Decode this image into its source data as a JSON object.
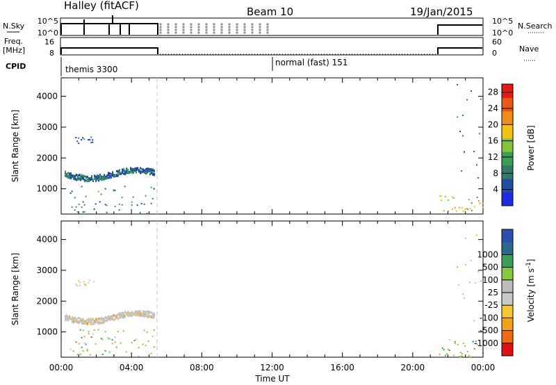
{
  "header": {
    "station": "Halley (fitACF)",
    "beam": "Beam 10",
    "date": "19/Jan/2015"
  },
  "status_panels": {
    "nsky_label": "N.Sky",
    "nsky_ticks": [
      "10^5",
      "10^0"
    ],
    "nsearch_label": "N.Search",
    "nsearch_ticks": [
      "10^5",
      "10^0"
    ],
    "freq_label_1": "Freq.",
    "freq_label_2": "[MHz]",
    "freq_ticks": [
      "16",
      "8"
    ],
    "nave_label": "Nave",
    "nave_ticks": [
      "60",
      "0"
    ],
    "cpid_label": "CPID",
    "cpid_modes": [
      "themis 3300",
      "normal (fast) 151"
    ]
  },
  "colors": {
    "power_scale": [
      "#1e2be6",
      "#214f9e",
      "#2f7a6a",
      "#3b9e54",
      "#84c43a",
      "#f2c210",
      "#f08c1a",
      "#e85a14",
      "#e01c14"
    ],
    "velocity_scale": [
      "#e01010",
      "#f06a14",
      "#f2a21a",
      "#f5c830",
      "#c8c8c8",
      "#bcbcbc",
      "#86c93a",
      "#3f9e55",
      "#2a6a8a",
      "#2a4fae"
    ]
  },
  "chart_data": [
    {
      "type": "heatmap",
      "title": "Power",
      "xlabel": "",
      "ylabel": "Slant Range [km]",
      "xlim_hours_ut": [
        0,
        24
      ],
      "ylim_km": [
        180,
        4600
      ],
      "x_ticks": [
        "00:00",
        "04:00",
        "08:00",
        "12:00",
        "16:00",
        "20:00",
        "00:00"
      ],
      "y_ticks": [
        1000,
        2000,
        3000,
        4000
      ],
      "colorbar": {
        "label": "Power [dB]",
        "ticks": [
          4,
          8,
          12,
          16,
          20,
          24,
          28
        ],
        "range": [
          0,
          30
        ]
      },
      "data_gap_hours_ut": [
        5.35,
        21.4
      ],
      "echo_regions": [
        {
          "name": "band 1300-1700 km",
          "t0": 0.2,
          "t1": 5.3,
          "range_km": [
            1300,
            1700
          ],
          "level_db": 6
        },
        {
          "name": "band 2500-2700 km",
          "t0": 0.8,
          "t1": 2.0,
          "range_km": [
            2500,
            2700
          ],
          "level_db": 4
        },
        {
          "name": "near range",
          "t0": 0.5,
          "t1": 5.3,
          "range_km": [
            200,
            1100
          ],
          "level_db": 8
        },
        {
          "name": "evening near range",
          "t0": 21.5,
          "t1": 24.0,
          "range_km": [
            200,
            800
          ],
          "level_db": 16
        },
        {
          "name": "evening far range",
          "t0": 22.5,
          "t1": 24.0,
          "range_km": [
            1300,
            4400
          ],
          "level_db": 5
        }
      ]
    },
    {
      "type": "heatmap",
      "title": "Velocity",
      "xlabel": "Time UT",
      "ylabel": "Slant Range [km]",
      "xlim_hours_ut": [
        0,
        24
      ],
      "ylim_km": [
        180,
        4600
      ],
      "x_ticks": [
        "00:00",
        "04:00",
        "08:00",
        "12:00",
        "16:00",
        "20:00",
        "00:00"
      ],
      "y_ticks": [
        1000,
        2000,
        3000,
        4000
      ],
      "colorbar": {
        "label": "Velocity [m s^-1]",
        "ticks": [
          -1000,
          -500,
          -100,
          -25,
          25,
          100,
          500,
          1000
        ]
      },
      "data_gap_hours_ut": [
        5.35,
        21.4
      ],
      "echo_regions": [
        {
          "name": "band 1300-1700 km",
          "t0": 0.2,
          "t1": 5.3,
          "range_km": [
            1300,
            1700
          ],
          "velocity": 0
        },
        {
          "name": "band 2500-2700 km",
          "t0": 0.8,
          "t1": 2.0,
          "range_km": [
            2500,
            2700
          ],
          "velocity": 0
        },
        {
          "name": "near range",
          "t0": 0.5,
          "t1": 5.3,
          "range_km": [
            200,
            1100
          ],
          "velocity": 150
        },
        {
          "name": "evening near range",
          "t0": 21.5,
          "t1": 24.0,
          "range_km": [
            200,
            800
          ],
          "velocity": 200
        },
        {
          "name": "evening far range",
          "t0": 22.5,
          "t1": 24.0,
          "range_km": [
            1300,
            4400
          ],
          "velocity": 0
        }
      ]
    }
  ]
}
